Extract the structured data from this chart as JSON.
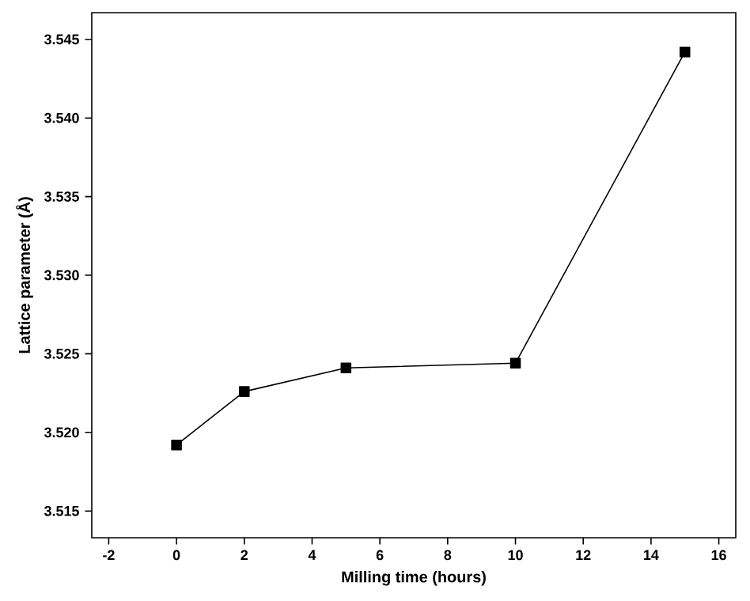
{
  "chart_data": {
    "type": "line",
    "xlabel": "Milling time (hours)",
    "ylabel": "Lattice parameter (Å)",
    "x": [
      0,
      2,
      5,
      10,
      15
    ],
    "series": [
      {
        "color": "#000000",
        "values": [
          3.5192,
          3.5226,
          3.5241,
          3.5244,
          3.5442
        ]
      }
    ],
    "xlim": [
      -2.5,
      16.5
    ],
    "ylim": [
      3.5133,
      3.5467
    ],
    "xticks": [
      -2,
      0,
      2,
      4,
      6,
      8,
      10,
      12,
      14,
      16
    ],
    "yticks": [
      {
        "value": 3.515,
        "label": "3.515"
      },
      {
        "value": 3.52,
        "label": "3.520"
      },
      {
        "value": 3.525,
        "label": "3.525"
      },
      {
        "value": 3.53,
        "label": "3.530"
      },
      {
        "value": 3.535,
        "label": "3.535"
      },
      {
        "value": 3.54,
        "label": "3.540"
      },
      {
        "value": 3.545,
        "label": "3.545"
      }
    ],
    "marker": "square",
    "line_style": "solid"
  }
}
